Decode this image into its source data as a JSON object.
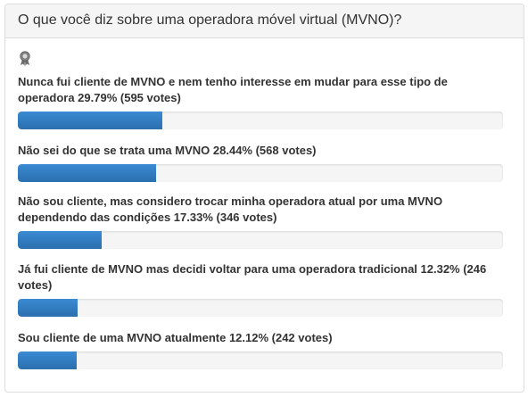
{
  "poll": {
    "question": "O que você diz sobre uma operadora móvel virtual (MVNO)?",
    "winner_icon": "award-ribbon-icon",
    "bar_color": "#2e7bc4",
    "options": [
      {
        "label": "Nunca fui cliente de MVNO e nem tenho interesse em mudar para esse tipo de operadora 29.79% (595 votes)",
        "percent": 29.79
      },
      {
        "label": "Não sei do que se trata uma MVNO 28.44% (568 votes)",
        "percent": 28.44
      },
      {
        "label": "Não sou cliente, mas considero trocar minha operadora atual por uma MVNO dependendo das condições 17.33% (346 votes)",
        "percent": 17.33
      },
      {
        "label": "Já fui cliente de MVNO mas decidi voltar para uma operadora tradicional 12.32% (246 votes)",
        "percent": 12.32
      },
      {
        "label": "Sou cliente de uma MVNO atualmente 12.12% (242 votes)",
        "percent": 12.12
      }
    ]
  }
}
